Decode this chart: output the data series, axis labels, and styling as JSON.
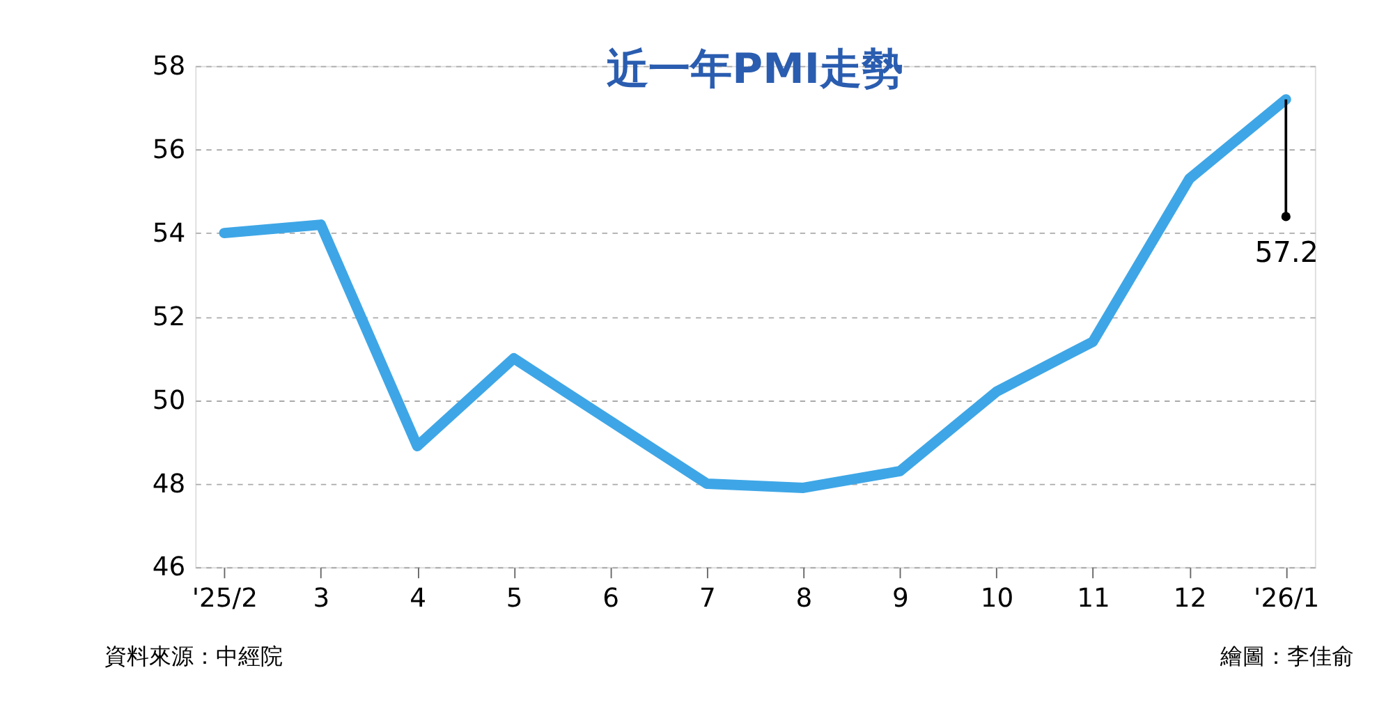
{
  "chart_data": {
    "type": "line",
    "title": "近一年PMI走勢",
    "categories": [
      "'25/2",
      "3",
      "4",
      "5",
      "6",
      "7",
      "8",
      "9",
      "10",
      "11",
      "12",
      "'26/1"
    ],
    "series": [
      {
        "color": "#3ea6e6",
        "values": [
          54.0,
          54.2,
          48.9,
          51.0,
          49.5,
          48.0,
          47.9,
          48.3,
          50.2,
          51.4,
          55.3,
          57.2
        ]
      }
    ],
    "ylim": [
      46,
      58
    ],
    "yticks": [
      46,
      48,
      50,
      52,
      54,
      56,
      58
    ],
    "grid": "y",
    "marker": "none",
    "line_style": "solid",
    "annotations": [
      {
        "text": "57.2",
        "x": "'26/1",
        "y": 57.2
      },
      "資料來源：中經院",
      "繪圖：李佳俞"
    ]
  }
}
